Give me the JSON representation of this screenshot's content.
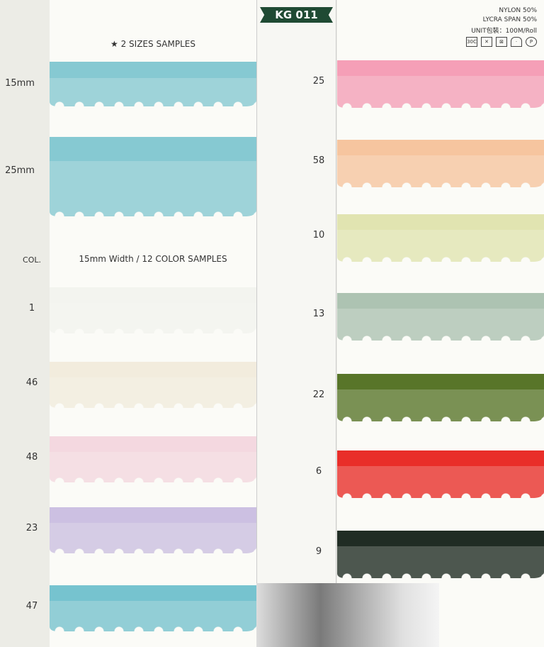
{
  "header": {
    "code": "KG 011",
    "spec": [
      "NYLON 50%",
      "LYCRA SPAN 50%",
      "UNIT包裝：100M/Roll"
    ],
    "care_icons": [
      "wash-30c-icon",
      "no-bleach-icon",
      "no-tumble-dry-icon",
      "iron-icon",
      "dry-clean-icon"
    ],
    "care_wash_text": "30C"
  },
  "left": {
    "sizes_title": "★ 2 SIZES SAMPLES",
    "colors_title": "15mm Width  / 12 COLOR SAMPLES",
    "col_label": "COL.",
    "sizes": [
      {
        "label": "15mm",
        "color": "#7fc6d0"
      },
      {
        "label": "25mm",
        "color": "#7fc6d0"
      }
    ],
    "colors": [
      {
        "label": "1",
        "color": "#f2f3ee"
      },
      {
        "label": "46",
        "color": "#f1ebdb"
      },
      {
        "label": "48",
        "color": "#f3d6de"
      },
      {
        "label": "23",
        "color": "#c9bde0"
      },
      {
        "label": "47",
        "color": "#6fc0cc"
      }
    ]
  },
  "right": {
    "colors": [
      {
        "label": "25",
        "color": "#f49ab3"
      },
      {
        "label": "58",
        "color": "#f6c29a"
      },
      {
        "label": "10",
        "color": "#dfe3ad"
      },
      {
        "label": "13",
        "color": "#a9c0ae"
      },
      {
        "label": "22",
        "color": "#4f6e1e"
      },
      {
        "label": "6",
        "color": "#e8231e"
      },
      {
        "label": "9",
        "color": "#142118"
      }
    ]
  }
}
